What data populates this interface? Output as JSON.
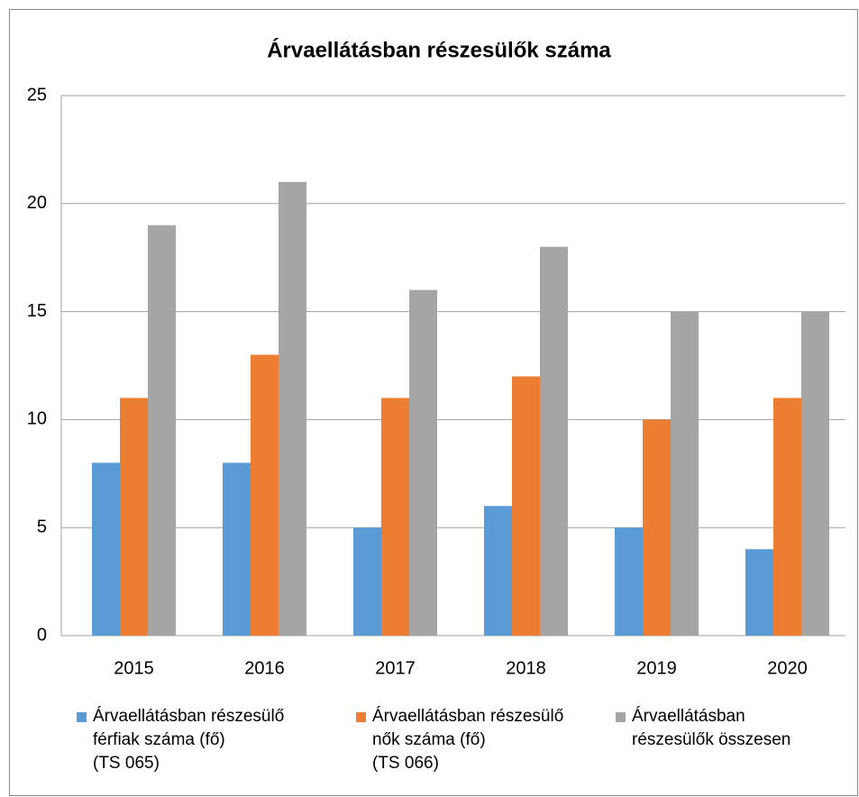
{
  "chart_data": {
    "type": "bar",
    "title": "Árvaellátásban részesülők száma",
    "categories": [
      "2015",
      "2016",
      "2017",
      "2018",
      "2019",
      "2020"
    ],
    "series": [
      {
        "name": "Árvaellátásban részesülő\nférfiak száma (fő)\n(TS 065)",
        "color": "#5b9bd5",
        "values": [
          8,
          8,
          5,
          6,
          5,
          4
        ]
      },
      {
        "name": "Árvaellátásban részesülő\nnők száma (fő)\n(TS 066)",
        "color": "#ed7d31",
        "values": [
          11,
          13,
          11,
          12,
          10,
          11
        ]
      },
      {
        "name": "Árvaellátásban\nrészesülők összesen",
        "color": "#a5a5a5",
        "values": [
          19,
          21,
          16,
          18,
          15,
          15
        ]
      }
    ],
    "ylim": [
      0,
      25
    ],
    "yticks": [
      0,
      5,
      10,
      15,
      20,
      25
    ],
    "grid": true,
    "legend": "bottom"
  }
}
